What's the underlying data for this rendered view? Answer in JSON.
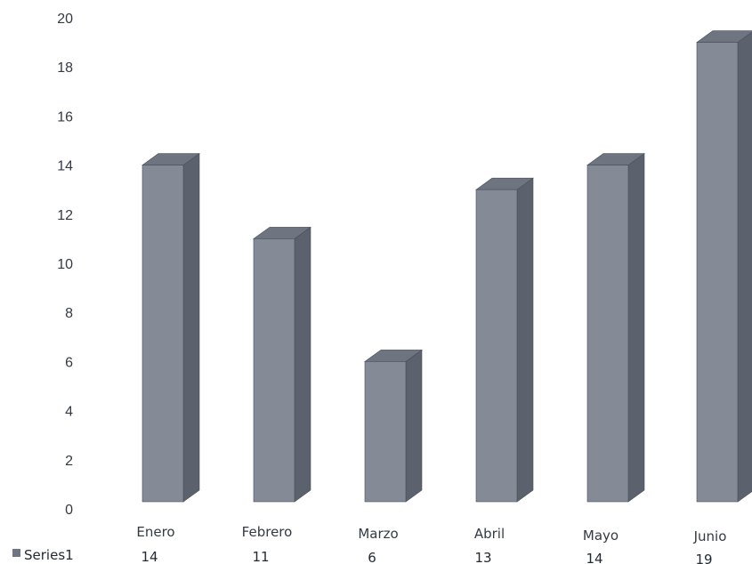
{
  "chart_data": {
    "type": "bar",
    "title": "",
    "xlabel": "",
    "ylabel": "",
    "categories": [
      "Enero",
      "Febrero",
      "Marzo",
      "Abril",
      "Mayo",
      "Junio"
    ],
    "series": [
      {
        "name": "Series1",
        "values": [
          14,
          11,
          6,
          13,
          14,
          19
        ],
        "value_labels": [
          "14",
          "11",
          "6",
          "13",
          "14",
          "19"
        ]
      }
    ],
    "ylim": [
      0,
      20
    ],
    "yticks": [
      0,
      2,
      4,
      6,
      8,
      10,
      12,
      14,
      16,
      18,
      20
    ],
    "grid": false,
    "three_d": true,
    "data_table": true,
    "legend_key_in_table": true,
    "colors": {
      "bar_front": "#848a96",
      "bar_side": "#5c626d",
      "bar_top": "#6e7480",
      "bar_outline": "#4a5059",
      "legend_key": "#6f7583"
    }
  }
}
